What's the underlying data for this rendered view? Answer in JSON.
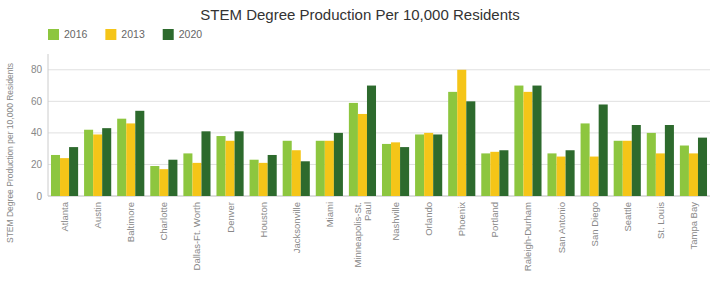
{
  "chart_data": {
    "type": "bar",
    "title": "STEM Degree Production Per 10,000 Residents",
    "ylabel": "STEM Degree Production per 10,000 Residents",
    "categories": [
      "Atlanta",
      "Austin",
      "Baltimore",
      "Charlotte",
      "Dallas-Ft. Worth",
      "Denver",
      "Houston",
      "Jacksonville",
      "Miami",
      "Minneapolis-St.\nPaul",
      "Nashville",
      "Orlando",
      "Phoenix",
      "Portland",
      "Raleigh-Durham",
      "San Antonio",
      "San Diego",
      "Seattle",
      "St. Louis",
      "Tampa Bay"
    ],
    "series": [
      {
        "name": "2016",
        "color": "#8DC63F",
        "values": [
          26,
          42,
          49,
          19,
          27,
          38,
          23,
          35,
          35,
          59,
          33,
          39,
          66,
          27,
          70,
          27,
          46,
          35,
          40,
          32
        ]
      },
      {
        "name": "2013",
        "color": "#F5C518",
        "values": [
          24,
          39,
          46,
          17,
          21,
          35,
          21,
          29,
          35,
          52,
          34,
          40,
          80,
          28,
          66,
          25,
          25,
          35,
          27,
          27
        ]
      },
      {
        "name": "2020",
        "color": "#2D6A2D",
        "values": [
          31,
          43,
          54,
          23,
          41,
          41,
          26,
          22,
          40,
          70,
          31,
          39,
          60,
          29,
          70,
          29,
          58,
          45,
          45,
          37
        ]
      }
    ],
    "ylim": [
      0,
      90
    ],
    "yticks": [
      0,
      20,
      40,
      60,
      80
    ],
    "grid": true,
    "legend": "upper left"
  }
}
